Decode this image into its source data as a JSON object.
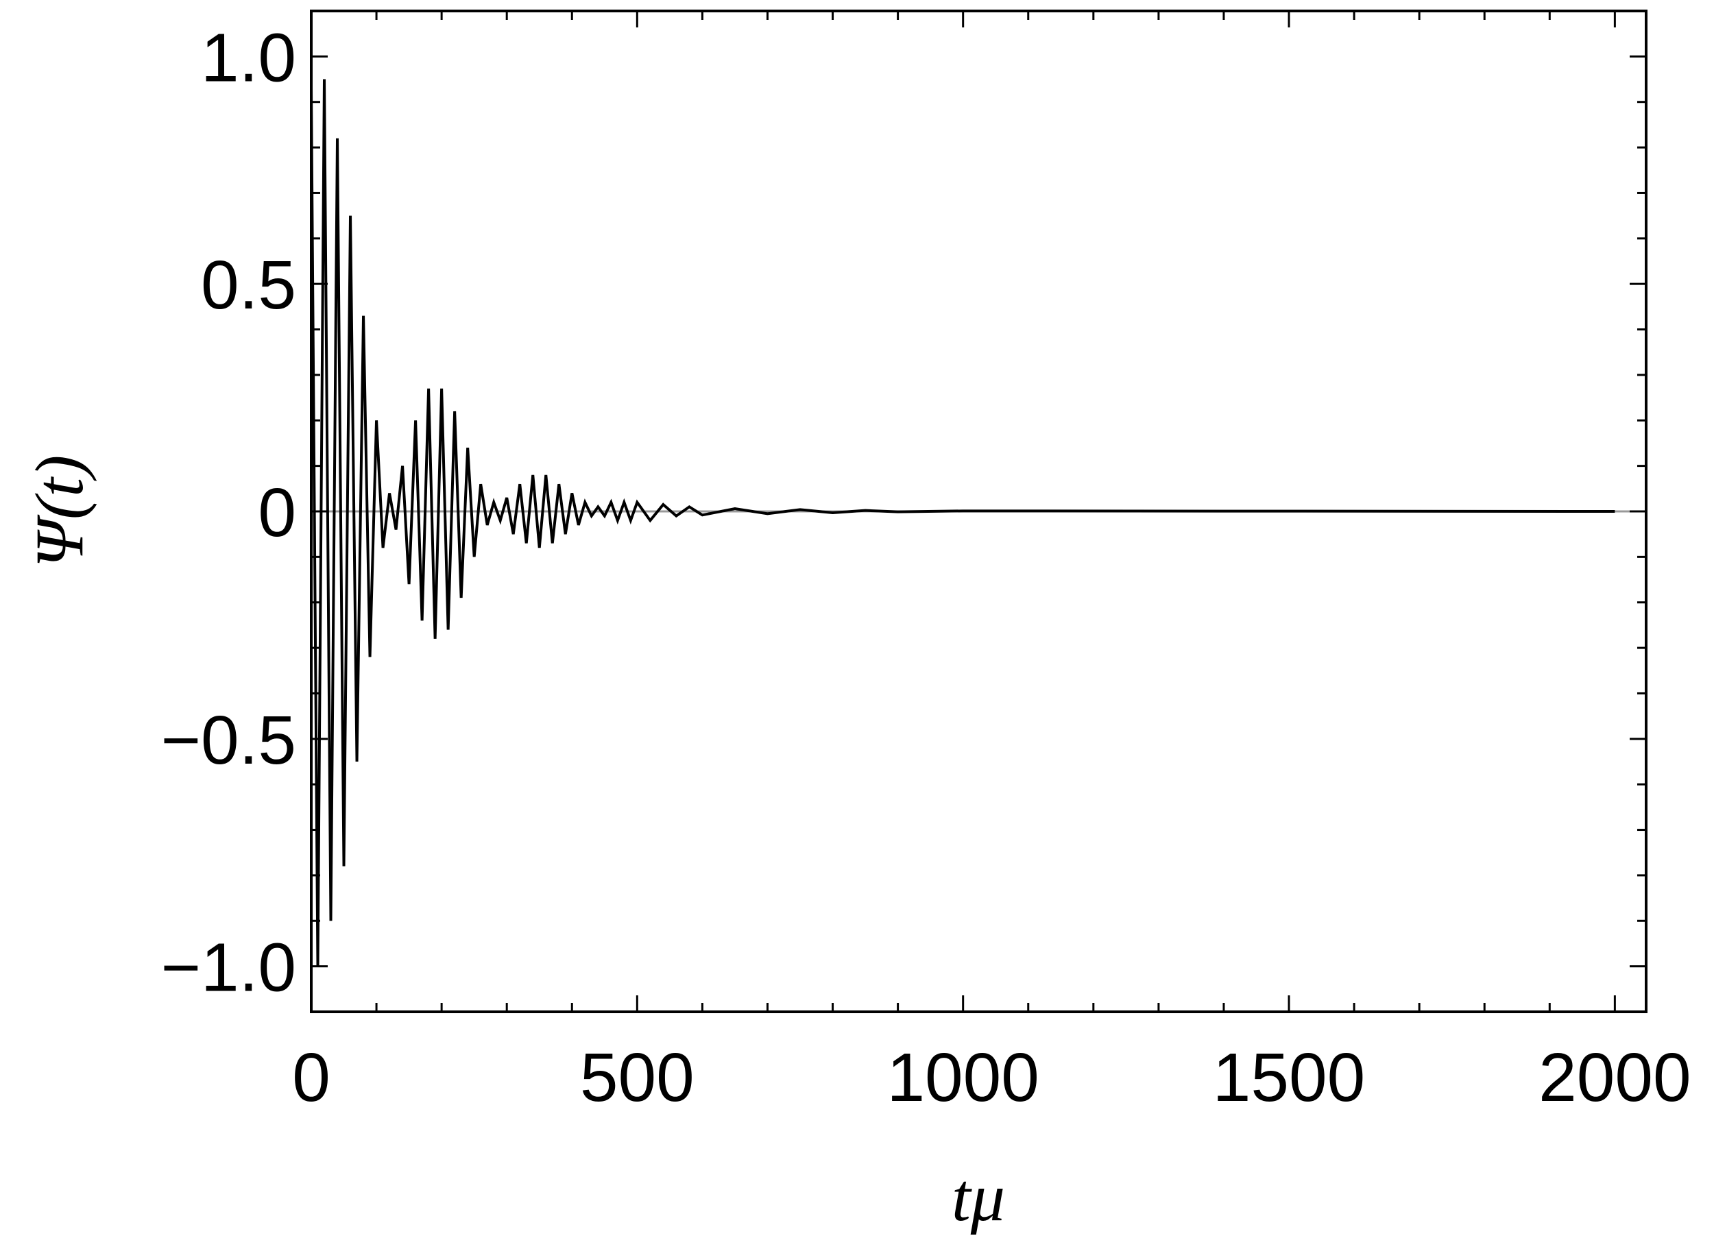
{
  "chart_data": {
    "type": "line",
    "xlabel": "tμ",
    "ylabel": "Ψ(t)",
    "x": [
      0,
      10,
      20,
      30,
      40,
      50,
      60,
      70,
      80,
      90,
      100,
      110,
      120,
      130,
      140,
      150,
      160,
      170,
      180,
      190,
      200,
      210,
      220,
      230,
      240,
      250,
      260,
      270,
      280,
      290,
      300,
      310,
      320,
      330,
      340,
      350,
      360,
      370,
      380,
      390,
      400,
      410,
      420,
      430,
      440,
      450,
      460,
      470,
      480,
      490,
      500,
      520,
      540,
      560,
      580,
      600,
      650,
      700,
      750,
      800,
      850,
      900,
      1000,
      2000
    ],
    "series": [
      {
        "color": "#000000",
        "values": [
          0.93,
          -1.0,
          0.95,
          -0.9,
          0.82,
          -0.78,
          0.65,
          -0.55,
          0.43,
          -0.32,
          0.2,
          -0.08,
          0.04,
          -0.04,
          0.1,
          -0.16,
          0.2,
          -0.24,
          0.27,
          -0.28,
          0.27,
          -0.26,
          0.22,
          -0.19,
          0.14,
          -0.1,
          0.06,
          -0.03,
          0.02,
          -0.02,
          0.03,
          -0.05,
          0.06,
          -0.07,
          0.08,
          -0.08,
          0.08,
          -0.07,
          0.06,
          -0.05,
          0.04,
          -0.03,
          0.02,
          -0.01,
          0.01,
          -0.01,
          0.02,
          -0.02,
          0.02,
          -0.02,
          0.02,
          -0.02,
          0.015,
          -0.01,
          0.01,
          -0.008,
          0.006,
          -0.005,
          0.004,
          -0.003,
          0.002,
          -0.001,
          0.001,
          0
        ]
      }
    ],
    "xlim": [
      0,
      2048
    ],
    "ylim": [
      -1.1,
      1.1
    ],
    "xticks": [
      0,
      500,
      1000,
      1500,
      2000
    ],
    "yticks": [
      {
        "value": -1.0,
        "label": "−1.0"
      },
      {
        "value": -0.5,
        "label": "−0.5"
      },
      0,
      0.5,
      {
        "value": 1.0,
        "label": "1.0"
      }
    ],
    "xminorticks": [
      100,
      200,
      300,
      400,
      600,
      700,
      800,
      900,
      1100,
      1200,
      1300,
      1400,
      1600,
      1700,
      1800,
      1900
    ],
    "yminorticks": [
      -0.9,
      -0.8,
      -0.7,
      -0.6,
      -0.4,
      -0.3,
      -0.2,
      -0.1,
      0.1,
      0.2,
      0.3,
      0.4,
      0.6,
      0.7,
      0.8,
      0.9
    ]
  }
}
